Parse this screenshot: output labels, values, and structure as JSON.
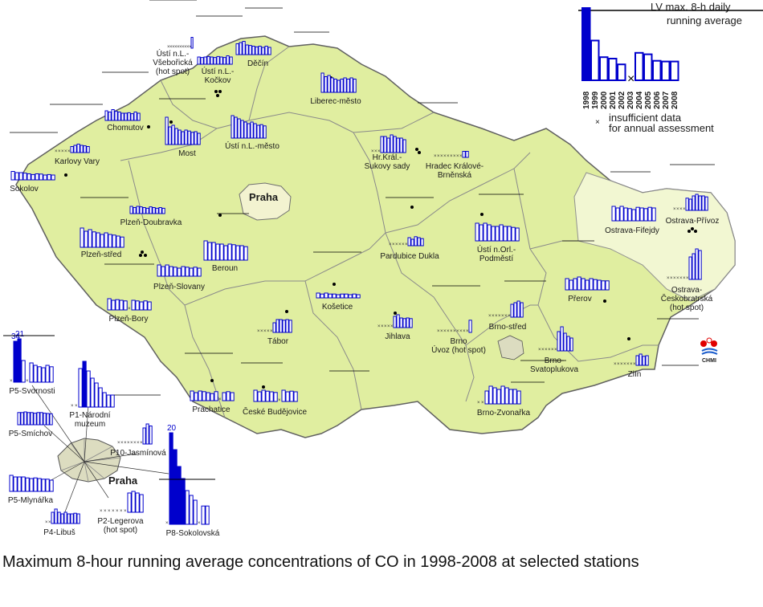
{
  "caption": "Maximum 8-hour running average concentrations of CO in 1998-2008 at selected stations",
  "legend": {
    "limit_value": "LV max. 8-h daily running average",
    "years": [
      "1998",
      "1999",
      "2000",
      "2001",
      "2002",
      "2003",
      "2004",
      "2005",
      "2006",
      "2007",
      "2008"
    ],
    "insufficient_data": "insufficient data for annual assessment",
    "example_bars": [
      1.05,
      0.55,
      0.32,
      0.3,
      0.22,
      0.14,
      0.38,
      0.36,
      0.27,
      0.26,
      0.26
    ],
    "example_insufficient": [
      5
    ]
  },
  "city_labels": {
    "praha_map": "Praha",
    "praha_inset": "Praha"
  },
  "logo": {
    "text": "CHMI"
  },
  "colors": {
    "land": "#e0eea0",
    "moravia_region": "#f2f7d2",
    "bars": "#0000cc",
    "praha": "#f3f3d0"
  },
  "stations": [
    {
      "name": "Ústí n.L.- Všebořická (hot spot)",
      "values": [
        0,
        0,
        0,
        0,
        0,
        0,
        0,
        0,
        0,
        0,
        0.45
      ],
      "nd": [
        0,
        1,
        2,
        3,
        4,
        5,
        6,
        7,
        8,
        9
      ]
    },
    {
      "name": "Děčín",
      "values": [
        0.45,
        0.5,
        0.55,
        0.4,
        0.38,
        0.35,
        0.32,
        0.35,
        0.3,
        0.35,
        0.3
      ],
      "nd": []
    },
    {
      "name": "Ústí n.L.- Kočkov",
      "values": [
        0.3,
        0.28,
        0.3,
        0.32,
        0.3,
        0.28,
        0.32,
        0.3,
        0.28,
        0.35,
        0.3
      ],
      "nd": []
    },
    {
      "name": "Liberec-město",
      "values": [
        0.8,
        0.65,
        0.7,
        0.6,
        0.55,
        0.5,
        0.55,
        0.6,
        0.55,
        0.6,
        0.55
      ],
      "nd": []
    },
    {
      "name": "Chomutov",
      "values": [
        0.4,
        0.35,
        0.45,
        0.38,
        0.35,
        0.3,
        0.3,
        0.32,
        0.28,
        0.35,
        0.3
      ],
      "nd": []
    },
    {
      "name": "Most",
      "values": [
        0.85,
        0.55,
        0.6,
        0.5,
        0.45,
        0.4,
        0.45,
        0.42,
        0.38,
        0.4,
        0.35
      ],
      "nd": []
    },
    {
      "name": "Ústí n.L.-město",
      "values": [
        0.7,
        0.65,
        0.6,
        0.55,
        0.5,
        0.45,
        0.5,
        0.45,
        0.4,
        0.42,
        0.38
      ],
      "nd": []
    },
    {
      "name": "Karlovy Vary",
      "values": [
        0,
        0,
        0,
        0,
        0,
        0.25,
        0.3,
        0.35,
        0.3,
        0.28,
        0.25
      ],
      "nd": [
        0,
        1,
        2,
        3,
        4
      ]
    },
    {
      "name": "Hr.Král.- Sukovy sady",
      "values": [
        0,
        0,
        0,
        0.5,
        0.5,
        0.45,
        0.55,
        0.5,
        0.45,
        0.45,
        0.4
      ],
      "nd": [
        0,
        1,
        2
      ]
    },
    {
      "name": "Hradec Králové- Brněnská",
      "values": [
        0,
        0,
        0,
        0,
        0,
        0,
        0,
        0,
        0,
        0.25,
        0.25
      ],
      "nd": [
        0,
        1,
        2,
        3,
        4,
        5,
        6,
        7,
        8
      ]
    },
    {
      "name": "Sokolov",
      "values": [
        0.35,
        0.3,
        0.3,
        0.28,
        0.25,
        0.22,
        0.25,
        0.24,
        0.2,
        0.22,
        0.2
      ],
      "nd": []
    },
    {
      "name": "Plzeň-Doubravka",
      "values": [
        0.3,
        0.25,
        0.3,
        0.28,
        0.25,
        0.22,
        0.28,
        0.25,
        0.22,
        0.25,
        0.22
      ],
      "nd": []
    },
    {
      "name": "Plzeň-střed",
      "values": [
        0.6,
        0.5,
        0.55,
        0.48,
        0.45,
        0.4,
        0.45,
        0.4,
        0.38,
        0.35,
        0.32
      ],
      "nd": []
    },
    {
      "name": "Beroun",
      "values": [
        0.6,
        0.55,
        0.55,
        0.5,
        0.5,
        0.45,
        0.5,
        0.48,
        0.45,
        0.45,
        0.42
      ],
      "nd": []
    },
    {
      "name": "Plzeň-Slovany",
      "values": [
        0.35,
        0.3,
        0.35,
        0.3,
        0.28,
        0.25,
        0.3,
        0.28,
        0.25,
        0.28,
        0.25
      ],
      "nd": []
    },
    {
      "name": "Pardubice Dukla",
      "values": [
        0,
        0,
        0,
        0,
        0,
        0,
        0.25,
        0.2,
        0.28,
        0.25,
        0.22
      ],
      "nd": [
        0,
        1,
        2,
        3,
        4,
        5
      ]
    },
    {
      "name": "Ústí n.Orl.- Podměstí",
      "values": [
        0.55,
        0.5,
        0.55,
        0.5,
        0.45,
        0.45,
        0.5,
        0.45,
        0.45,
        0.42,
        0.4
      ],
      "nd": []
    },
    {
      "name": "Ostrava-Fifejdy",
      "values": [
        0.45,
        0.4,
        0.45,
        0.4,
        0.38,
        0.35,
        0.42,
        0.4,
        0.38,
        0.42,
        0.4
      ],
      "nd": []
    },
    {
      "name": "Ostrava-Přívoz",
      "values": [
        0,
        0,
        0,
        0,
        0.38,
        0.35,
        0.45,
        0.5,
        0.45,
        0.45,
        0.42
      ],
      "nd": [
        0,
        1,
        2,
        3
      ]
    },
    {
      "name": "Košetice",
      "values": [
        0.15,
        0.12,
        0.15,
        0.12,
        0.12,
        0.1,
        0.12,
        0.12,
        0.1,
        0.12,
        0.1
      ],
      "nd": []
    },
    {
      "name": "Ostrava- Českobratrská (hot spot)",
      "values": [
        0,
        0,
        0,
        0,
        0,
        0,
        0,
        0.7,
        0.8,
        0.95,
        0.9
      ],
      "nd": [
        0,
        1,
        2,
        3,
        4,
        5,
        6
      ]
    },
    {
      "name": "Plzeň-Bory",
      "values": [
        0.35,
        0.3,
        0.32,
        0.3,
        0.28,
        0.0,
        0.3,
        0.28,
        0.25,
        0.28,
        0.25
      ],
      "nd": [
        5
      ]
    },
    {
      "name": "Přerov",
      "values": [
        0.35,
        0.3,
        0.35,
        0.4,
        0.35,
        0.3,
        0.35,
        0.32,
        0.3,
        0.28,
        0.28
      ],
      "nd": []
    },
    {
      "name": "Jihlava",
      "values": [
        0,
        0,
        0,
        0,
        0,
        0.35,
        0.4,
        0.3,
        0.28,
        0.3,
        0.28
      ],
      "nd": [
        0,
        1,
        2,
        3,
        4
      ]
    },
    {
      "name": "Brno-střed",
      "values": [
        0,
        0,
        0,
        0,
        0,
        0,
        0,
        0.4,
        0.45,
        0.5,
        0.45
      ],
      "nd": [
        0,
        1,
        2,
        3,
        4,
        5,
        6
      ]
    },
    {
      "name": "Tábor",
      "values": [
        0,
        0,
        0,
        0,
        0,
        0.3,
        0.4,
        0.4,
        0.38,
        0.4,
        0.38
      ],
      "nd": [
        0,
        1,
        2,
        3,
        4
      ]
    },
    {
      "name": "Brno Úvoz (hot spot)",
      "values": [
        0,
        0,
        0,
        0,
        0,
        0,
        0,
        0,
        0,
        0,
        0.38
      ],
      "nd": [
        0,
        1,
        2,
        3,
        4,
        5,
        6,
        7,
        8,
        9
      ]
    },
    {
      "name": "Brno- Svatoplukova",
      "values": [
        0,
        0,
        0,
        0,
        0,
        0,
        0.6,
        0.75,
        0.55,
        0.45,
        0.4
      ],
      "nd": [
        0,
        1,
        2,
        3,
        4,
        5
      ]
    },
    {
      "name": "Zlín",
      "values": [
        0,
        0,
        0,
        0,
        0,
        0,
        0,
        0.3,
        0.35,
        0.28,
        0.3
      ],
      "nd": [
        0,
        1,
        2,
        3,
        4,
        5,
        6
      ]
    },
    {
      "name": "Prachatice",
      "values": [
        0.3,
        0.25,
        0.3,
        0.28,
        0.25,
        0.22,
        0.28,
        0.0,
        0.25,
        0.28,
        0.25
      ],
      "nd": [
        7
      ]
    },
    {
      "name": "České Budějovice",
      "values": [
        0.35,
        0.3,
        0.35,
        0.32,
        0.3,
        0.28,
        0.0,
        0.35,
        0.3,
        0.32,
        0.3
      ],
      "nd": [
        6
      ]
    },
    {
      "name": "Brno-Zvonařka",
      "values": [
        0,
        0,
        0.4,
        0.55,
        0.5,
        0.45,
        0.55,
        0.5,
        0.45,
        0.45,
        0.4
      ],
      "nd": [
        0,
        1
      ]
    },
    {
      "name": "P5-Svornosti",
      "values": [
        0,
        0.85,
        0.9,
        0.45,
        0.0,
        0.4,
        0.35,
        0.32,
        0.3,
        0.35,
        0.32
      ],
      "labels": [
        "",
        "34",
        "21",
        "",
        "",
        "",
        "",
        "",
        "",
        "",
        ""
      ],
      "overflow": [
        1,
        2
      ],
      "nd": [
        0,
        4
      ]
    },
    {
      "name": "P1-Národní muzeum",
      "values": [
        0,
        0,
        0.8,
        0.95,
        0.75,
        0.6,
        0.5,
        0.4,
        0.3,
        0.25,
        0.25
      ],
      "overflow": [
        3
      ],
      "nd": [
        0,
        1
      ]
    },
    {
      "name": "P5-Smíchov",
      "values": [
        0.38,
        0.38,
        0.4,
        0.38,
        0.38,
        0.36,
        0.38,
        0.38,
        0.36,
        0.35,
        0.34
      ],
      "nd": []
    },
    {
      "name": "P10-Jasmínová",
      "values": [
        0,
        0,
        0,
        0,
        0,
        0,
        0,
        0,
        0.4,
        0.5,
        0.45
      ],
      "nd": [
        0,
        1,
        2,
        3,
        4,
        5,
        6,
        7
      ]
    },
    {
      "name": "P5-Mlynářka",
      "values": [
        0.5,
        0.45,
        0.45,
        0.45,
        0.42,
        0.4,
        0.42,
        0.4,
        0.38,
        0.38,
        0.35
      ],
      "nd": []
    },
    {
      "name": "P2-Legerova (hot spot)",
      "values": [
        0,
        0,
        0,
        0,
        0,
        0,
        0,
        0.6,
        0.65,
        0.6,
        0.55
      ],
      "nd": [
        0,
        1,
        2,
        3,
        4,
        5,
        6
      ]
    },
    {
      "name": "P4-Libuš",
      "values": [
        0,
        0,
        0.35,
        0.45,
        0.35,
        0.3,
        0.35,
        0.3,
        0.3,
        0.32,
        0.3
      ],
      "nd": [
        0,
        1
      ]
    },
    {
      "name": "P8-Sokolovská",
      "values": [
        0,
        1.9,
        1.55,
        1.2,
        0.95,
        0.7,
        0.6,
        0.5,
        0.0,
        0.38,
        0.38
      ],
      "labels": [
        "",
        "20",
        "",
        "",
        "",
        "",
        "",
        "",
        "",
        "",
        ""
      ],
      "overflow": [
        1,
        2,
        3,
        4
      ],
      "nd": [
        0,
        8
      ]
    }
  ]
}
